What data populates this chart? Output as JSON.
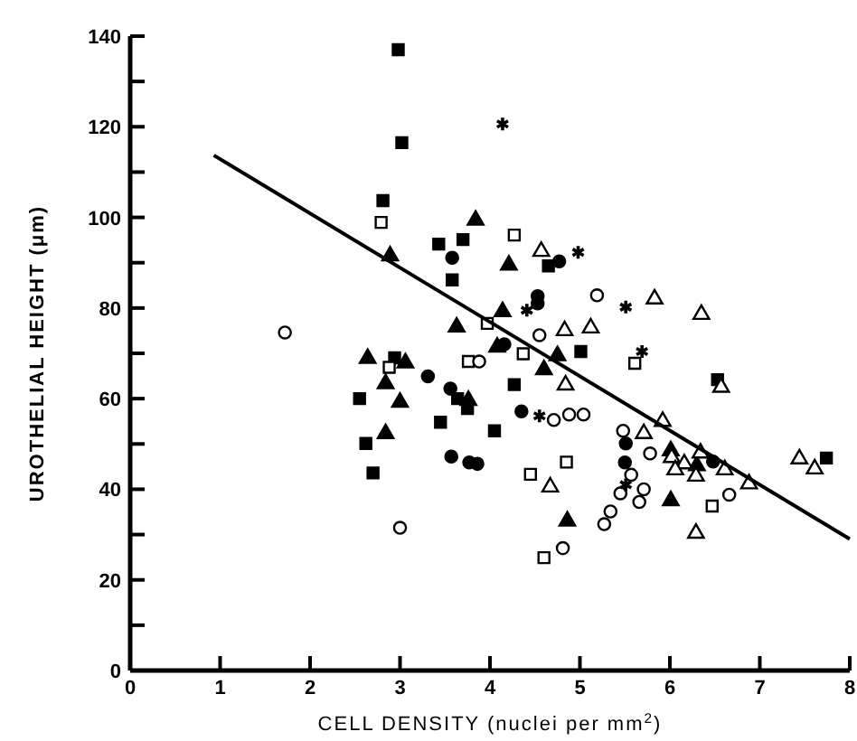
{
  "chart_data": {
    "type": "scatter",
    "xlabel": "CELL DENSITY (nuclei per mm$^{2}$)",
    "ylabel": "UROTHELIAL HEIGHT (μm)",
    "xlim": [
      0,
      8
    ],
    "ylim": [
      0,
      140
    ],
    "xticks": [
      0,
      1,
      2,
      3,
      4,
      5,
      6,
      7,
      8
    ],
    "yticks": [
      0,
      {
        "value": 10,
        "label": null
      },
      20,
      {
        "value": 30,
        "label": null
      },
      40,
      {
        "value": 50,
        "label": null
      },
      60,
      {
        "value": 70,
        "label": null
      },
      80,
      {
        "value": 90,
        "label": null
      },
      100,
      {
        "value": 110,
        "label": null
      },
      120,
      {
        "value": 130,
        "label": null
      },
      140
    ],
    "grid": false,
    "series": [
      {
        "color": "#000000",
        "marker": "square",
        "x": [
          2.98,
          3.02,
          2.81,
          3.43,
          3.7,
          3.58,
          2.94,
          2.55,
          3.64,
          3.75,
          3.45,
          2.62,
          2.7,
          5.01,
          4.27,
          6.53,
          4.05,
          7.74,
          4.65
        ],
        "values": [
          137,
          116.5,
          103.7,
          94.1,
          95.1,
          86.2,
          69,
          60,
          60,
          57.8,
          54.8,
          50.1,
          43.6,
          70.4,
          63.1,
          64.2,
          52.9,
          46.9,
          89.3
        ]
      },
      {
        "color": "#000000",
        "marker": "circle",
        "x": [
          3.58,
          4.77,
          4.53,
          4.53,
          4.16,
          3.31,
          3.56,
          3.57,
          3.77,
          3.86,
          4.35,
          5.51,
          5.5,
          6.48
        ],
        "values": [
          91.1,
          90.3,
          82.6,
          81,
          72,
          64.9,
          62.2,
          47.2,
          45.9,
          45.6,
          57.2,
          50.1,
          45.9,
          46.1
        ]
      },
      {
        "color": "#000000",
        "marker": "triangle",
        "x": [
          2.89,
          3.84,
          3.63,
          4.21,
          4.14,
          4.75,
          4.08,
          2.64,
          3.06,
          2.84,
          3,
          3.76,
          2.84,
          4.6,
          4.86,
          6.01,
          6.01,
          6.3
        ],
        "values": [
          91.5,
          99.4,
          75.8,
          89.5,
          79.2,
          69.5,
          71.4,
          68.9,
          67.9,
          63.3,
          59.2,
          59.6,
          52.3,
          66.4,
          33,
          37.5,
          48.5,
          45.2
        ]
      },
      {
        "color": "#ffffff",
        "marker": "square",
        "x": [
          2.79,
          3.97,
          4.27,
          4.37,
          5.61,
          3.76,
          2.88,
          4.45,
          4.85,
          4.6,
          6.47
        ],
        "values": [
          98.9,
          76.6,
          96.1,
          69.9,
          67.8,
          68.2,
          66.9,
          43.3,
          46,
          24.9,
          36.3
        ]
      },
      {
        "color": "#ffffff",
        "marker": "circle",
        "x": [
          1.72,
          5.19,
          4.55,
          3.88,
          3,
          4.71,
          4.88,
          5.04,
          4.81,
          5.48,
          5.78,
          5.57,
          5.45,
          5.71,
          5.66,
          5.34,
          5.27,
          6.66
        ],
        "values": [
          74.6,
          82.8,
          74,
          68.2,
          31.5,
          55.3,
          56.5,
          56.5,
          27,
          52.9,
          47.9,
          43.2,
          39.1,
          40,
          37.2,
          35.1,
          32.3,
          38.8
        ]
      },
      {
        "color": "#ffffff",
        "marker": "triangle",
        "x": [
          4.57,
          5.83,
          6.35,
          4.83,
          5.12,
          4.84,
          6.57,
          5.92,
          4.67,
          5.71,
          6.02,
          6.16,
          6.06,
          6.34,
          6.29,
          6.61,
          6.88,
          6.29,
          7.44,
          7.61
        ],
        "values": [
          92.5,
          82,
          78.6,
          75,
          75.6,
          63,
          62.5,
          55,
          40.5,
          52.3,
          47,
          45.6,
          44.3,
          48,
          42.9,
          44.3,
          41.2,
          30.3,
          46.7,
          44.5
        ]
      },
      {
        "color": "#000000",
        "marker": "cross",
        "x": [
          4.14,
          4.98,
          5.51,
          4.41,
          5.69,
          4.55,
          5.51
        ],
        "values": [
          120.6,
          92.3,
          80.2,
          79.5,
          70.4,
          56.2,
          41
        ]
      },
      {
        "type": "line",
        "color": "#000000",
        "line_style": "solid",
        "x": [
          0.93,
          8
        ],
        "values": [
          113.7,
          29
        ]
      }
    ]
  }
}
